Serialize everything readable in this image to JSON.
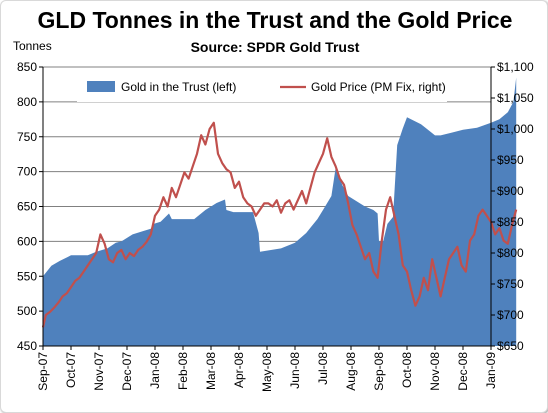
{
  "chart_data": {
    "type": "area+line",
    "title": "GLD Tonnes in the Trust and the Gold Price",
    "subtitle": "Source: SPDR Gold Trust",
    "left_axis_title": "Tonnes",
    "left_axis": {
      "min": 450,
      "max": 850,
      "ticks": [
        "450",
        "500",
        "550",
        "600",
        "650",
        "700",
        "750",
        "800",
        "850"
      ]
    },
    "right_axis": {
      "min": 650,
      "max": 1100,
      "ticks": [
        "$650",
        "$700",
        "$750",
        "$800",
        "$850",
        "$900",
        "$950",
        "$1,000",
        "$1,050",
        "$1,100"
      ]
    },
    "x_ticks": [
      "Sep-07",
      "Oct-07",
      "Nov-07",
      "Dec-07",
      "Jan-08",
      "Feb-08",
      "Mar-08",
      "Apr-08",
      "May-08",
      "Jun-08",
      "Jul-08",
      "Aug-08",
      "Sep-08",
      "Oct-08",
      "Nov-08",
      "Dec-08",
      "Jan-09"
    ],
    "grid": "horizontal",
    "legend_position": "top",
    "colors": {
      "tonnes_fill": "#4f81bd",
      "price_line": "#c0504d"
    },
    "series": [
      {
        "name": "Gold in the Trust (left)",
        "kind": "area",
        "axis": "left",
        "x": [
          0,
          0.3,
          0.6,
          0.9,
          1.0,
          1.6,
          1.9,
          2.3,
          2.6,
          2.8,
          3.2,
          3.6,
          3.85,
          3.95,
          4.2,
          4.5,
          4.6,
          5.0,
          5.4,
          5.8,
          6.0,
          6.2,
          6.5,
          6.55,
          6.8,
          7.0,
          7.5,
          7.7,
          7.75,
          8.5,
          9.0,
          9.4,
          9.6,
          9.8,
          10.0,
          10.3,
          10.45,
          10.7,
          10.9,
          11.3,
          11.5,
          11.8,
          11.95,
          12.0,
          12.15,
          12.3,
          12.5,
          12.65,
          12.85,
          13.0,
          13.5,
          14.0,
          14.2,
          14.6,
          15.0,
          15.5,
          16.0,
          16.3,
          16.6,
          16.8,
          16.9
        ],
        "values": [
          550,
          565,
          572,
          578,
          580,
          580,
          585,
          590,
          598,
          600,
          610,
          615,
          618,
          625,
          628,
          640,
          632,
          632,
          632,
          645,
          650,
          655,
          660,
          645,
          642,
          642,
          642,
          612,
          585,
          590,
          598,
          612,
          622,
          632,
          645,
          665,
          705,
          680,
          665,
          655,
          650,
          645,
          640,
          600,
          600,
          625,
          635,
          738,
          762,
          778,
          768,
          752,
          752,
          756,
          760,
          763,
          770,
          775,
          785,
          800,
          835
        ]
      },
      {
        "name": "Gold Price (PM Fix, right)",
        "kind": "line",
        "axis": "right",
        "x": [
          0,
          0.1,
          0.25,
          0.4,
          0.55,
          0.7,
          0.85,
          1.0,
          1.15,
          1.3,
          1.45,
          1.6,
          1.75,
          1.9,
          2.05,
          2.2,
          2.35,
          2.5,
          2.65,
          2.8,
          2.95,
          3.1,
          3.25,
          3.4,
          3.55,
          3.7,
          3.85,
          4.0,
          4.15,
          4.3,
          4.45,
          4.6,
          4.75,
          4.9,
          5.05,
          5.2,
          5.35,
          5.5,
          5.65,
          5.8,
          5.95,
          6.1,
          6.25,
          6.4,
          6.55,
          6.7,
          6.85,
          7.0,
          7.15,
          7.3,
          7.45,
          7.6,
          7.75,
          7.9,
          8.05,
          8.2,
          8.35,
          8.5,
          8.65,
          8.8,
          8.95,
          9.1,
          9.25,
          9.4,
          9.55,
          9.7,
          9.85,
          10.0,
          10.15,
          10.3,
          10.45,
          10.6,
          10.75,
          10.9,
          11.05,
          11.2,
          11.35,
          11.5,
          11.65,
          11.8,
          11.95,
          12.1,
          12.25,
          12.4,
          12.55,
          12.7,
          12.85,
          13.0,
          13.15,
          13.3,
          13.45,
          13.6,
          13.75,
          13.9,
          14.05,
          14.2,
          14.35,
          14.5,
          14.65,
          14.8,
          14.95,
          15.1,
          15.25,
          15.4,
          15.55,
          15.7,
          15.85,
          16.0,
          16.15,
          16.3,
          16.45,
          16.6,
          16.75,
          16.9
        ],
        "values": [
          680,
          700,
          705,
          712,
          720,
          730,
          735,
          745,
          755,
          760,
          770,
          780,
          790,
          800,
          830,
          815,
          790,
          785,
          800,
          805,
          790,
          800,
          795,
          805,
          810,
          818,
          830,
          860,
          870,
          890,
          875,
          905,
          890,
          910,
          930,
          920,
          940,
          960,
          990,
          975,
          1000,
          1010,
          960,
          945,
          935,
          930,
          905,
          915,
          890,
          880,
          875,
          860,
          870,
          880,
          880,
          875,
          885,
          865,
          880,
          885,
          870,
          885,
          900,
          880,
          905,
          930,
          945,
          960,
          985,
          955,
          940,
          920,
          910,
          880,
          845,
          830,
          810,
          790,
          800,
          770,
          760,
          820,
          870,
          890,
          860,
          830,
          780,
          770,
          740,
          715,
          730,
          760,
          740,
          790,
          760,
          730,
          760,
          790,
          800,
          810,
          780,
          770,
          820,
          830,
          860,
          870,
          860,
          850,
          830,
          840,
          820,
          815,
          845,
          870
        ]
      }
    ]
  }
}
